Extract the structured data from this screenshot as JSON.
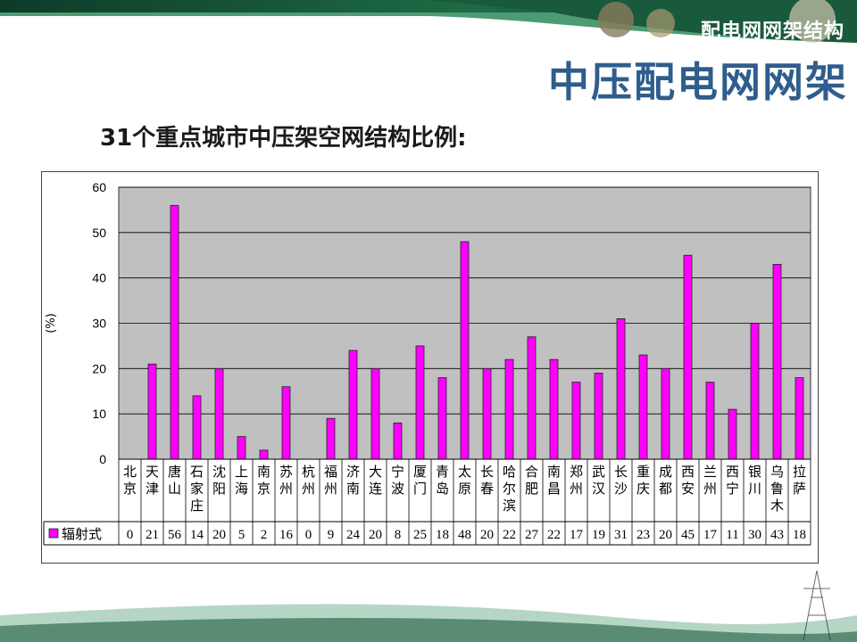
{
  "header": {
    "banner_label": "配电网网架结构",
    "title": "中压配电网网架",
    "subtitle": "31个重点城市中压架空网结构比例:"
  },
  "colors": {
    "bar": "#ff00ff",
    "plot_bg": "#c0c0c0",
    "title": "#2f5d8c",
    "banner": "#1a5a3c"
  },
  "chart_data": {
    "type": "bar",
    "ylabel": "(%)",
    "ylim": [
      0,
      60
    ],
    "yticks": [
      0,
      10,
      20,
      30,
      40,
      50,
      60
    ],
    "grid": true,
    "categories": [
      "北京",
      "天津",
      "唐山",
      "石家庄",
      "沈阳",
      "上海",
      "南京",
      "苏州",
      "杭州",
      "福州",
      "济南",
      "大连",
      "宁波",
      "厦门",
      "青岛",
      "太原",
      "长春",
      "哈尔滨",
      "合肥",
      "南昌",
      "郑州",
      "武汉",
      "长沙",
      "重庆",
      "成都",
      "西安",
      "兰州",
      "西宁",
      "银川",
      "乌鲁木",
      "拉萨"
    ],
    "series": [
      {
        "name": "辐射式",
        "values": [
          0,
          21,
          56,
          14,
          20,
          5,
          2,
          16,
          0,
          9,
          24,
          20,
          8,
          25,
          18,
          48,
          20,
          22,
          27,
          22,
          17,
          19,
          31,
          23,
          20,
          45,
          17,
          11,
          30,
          43,
          18
        ]
      }
    ]
  }
}
